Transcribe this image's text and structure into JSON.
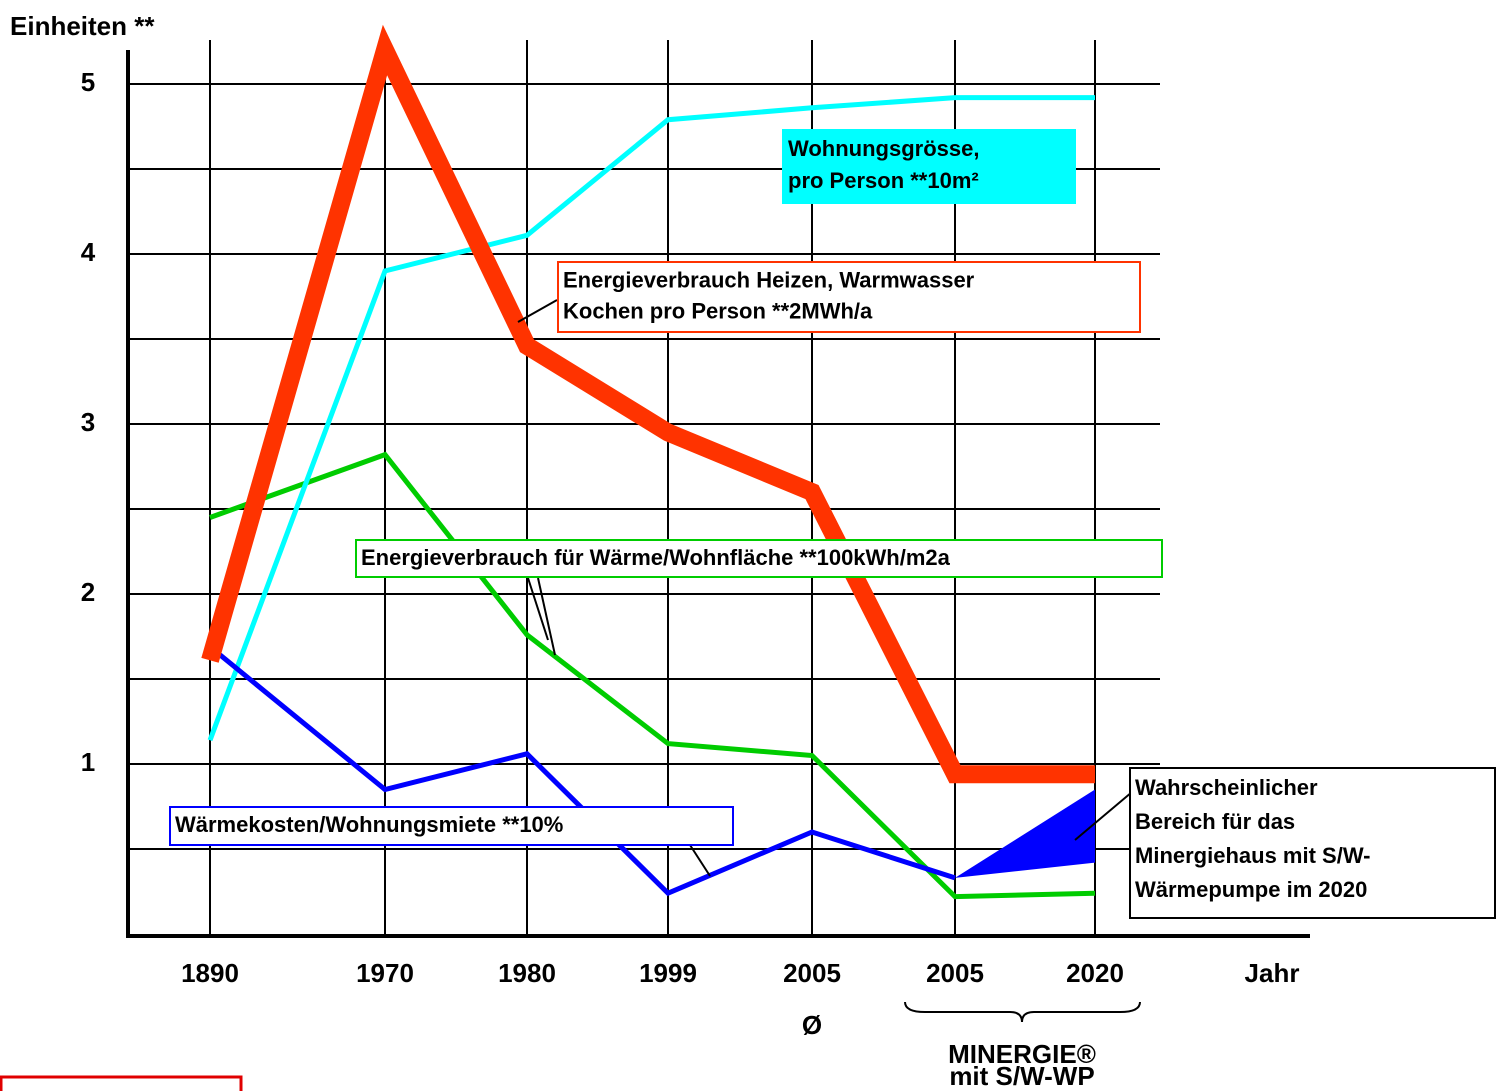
{
  "chart_data": {
    "type": "line",
    "y_label": "Einheiten **",
    "x_label": "Jahr",
    "categories": [
      "1890",
      "1970",
      "1980",
      "1999",
      "2005",
      "2005",
      "2020"
    ],
    "category_notes": {
      "4": "Ø"
    },
    "group_label": [
      "MINERGIE®",
      "mit S/W-WP"
    ],
    "ylim": [
      0,
      5.2
    ],
    "yticks": [
      1,
      2,
      3,
      4,
      5
    ],
    "minor_yticks": [
      0.5,
      1.5,
      2.5,
      3.5,
      4.5
    ],
    "grid": true,
    "series": [
      {
        "label": [
          "Energieverbrauch Heizen, Warmwasser",
          "Kochen pro Person **2MWh/a"
        ],
        "color": "#ff3300",
        "values": [
          1.61,
          5.2,
          3.46,
          2.95,
          2.6,
          0.94,
          0.94
        ]
      },
      {
        "label": [
          "Wohnungsgrösse,",
          "pro Person **10m²"
        ],
        "color": "#00ffff",
        "values": [
          1.14,
          3.9,
          4.11,
          4.79,
          4.86,
          4.92,
          4.92
        ]
      },
      {
        "label": [
          "Energieverbrauch für Wärme/Wohnfläche **100kWh/m2a"
        ],
        "color": "#00cc00",
        "values": [
          2.45,
          2.82,
          1.76,
          1.12,
          1.05,
          0.22,
          0.24
        ]
      },
      {
        "label": [
          "Wärmekosten/Wohnungsmiete **10%"
        ],
        "color": "#0000ff",
        "values": [
          1.69,
          0.85,
          1.06,
          0.24,
          0.6,
          0.33,
          null
        ]
      }
    ],
    "range": {
      "label": [
        "Wahrscheinlicher",
        "Bereich für das",
        "Minergiehaus mit S/W-",
        "Wärmepumpe im 2020"
      ],
      "color": "#0000ff",
      "low": 0.42,
      "high": 0.85
    }
  }
}
